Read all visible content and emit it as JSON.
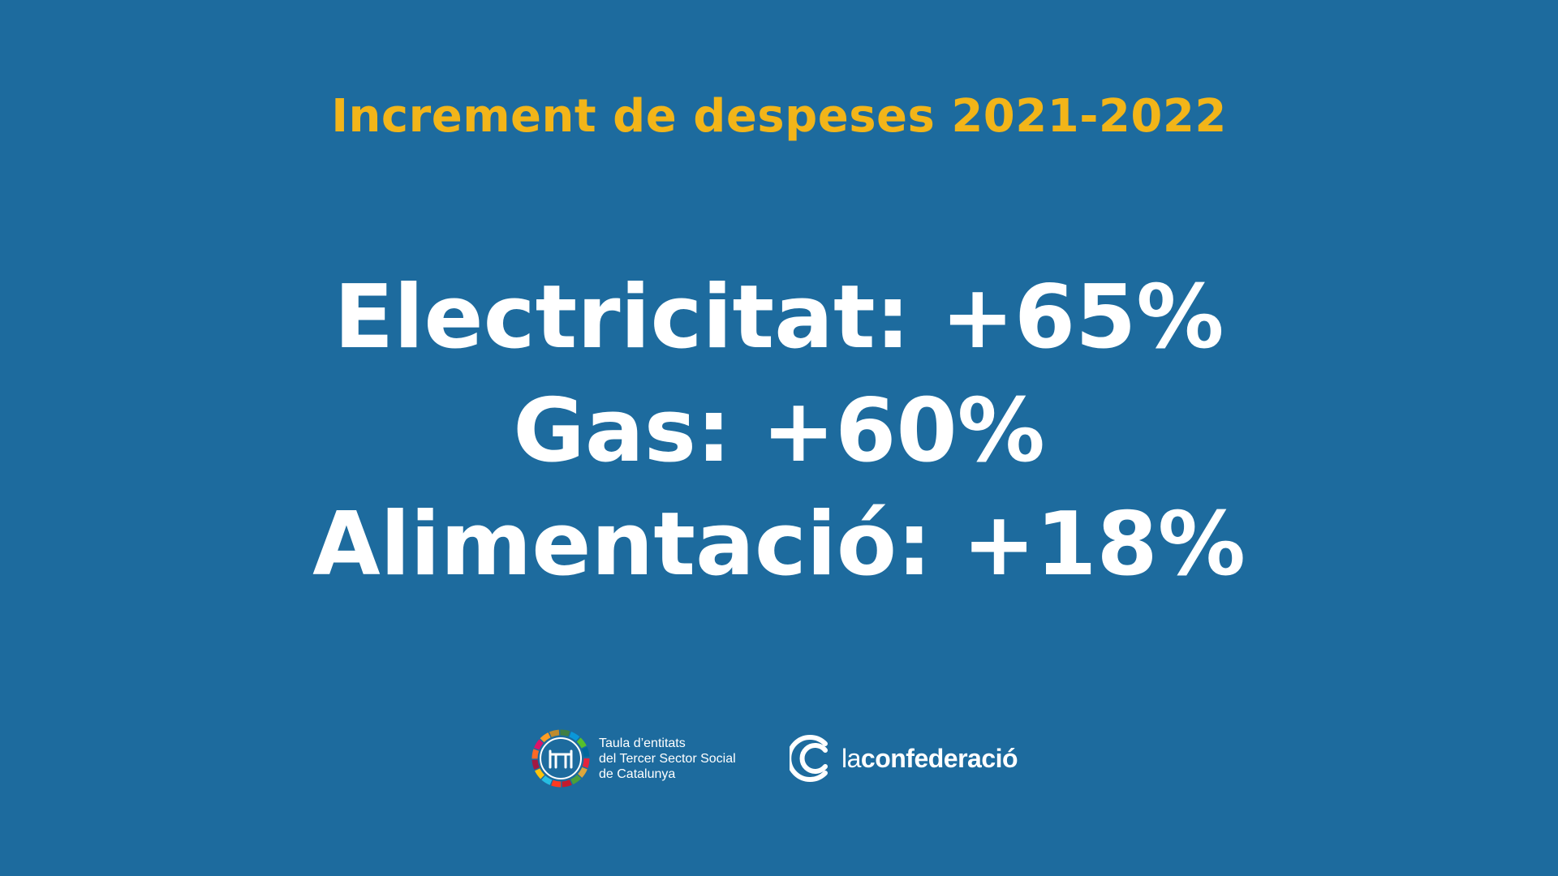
{
  "title": "Increment de despeses 2021-2022",
  "stats": [
    "Electricitat: +65%",
    "Gas: +60%",
    "Alimentació: +18%"
  ],
  "logos": {
    "taula": {
      "lines": [
        "Taula d’entitats",
        "del Tercer Sector Social",
        "de Catalunya"
      ]
    },
    "confederacio": {
      "prefix": "la",
      "name": "confederació"
    }
  },
  "colors": {
    "background": "#1d6b9e",
    "title": "#f2b519",
    "text": "#ffffff"
  }
}
